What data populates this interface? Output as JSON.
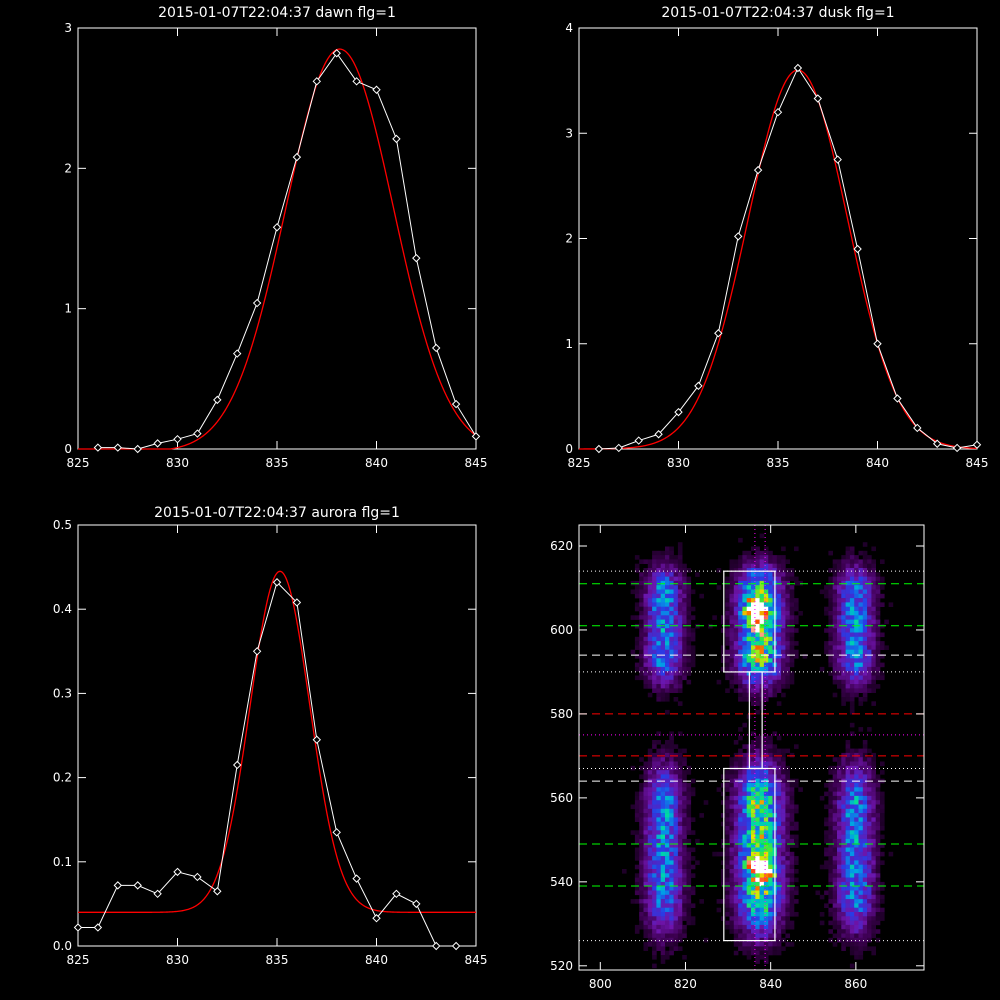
{
  "colors": {
    "background": "#000000",
    "axes": "#ffffff",
    "data_line": "#ffffff",
    "fit_line": "#ff0000",
    "green_dash": "#00ff00",
    "red_dash": "#ff0000",
    "white_dash": "#ffffff",
    "magenta_dot": "#ff00ff"
  },
  "chart_data": [
    {
      "id": "dawn",
      "type": "line",
      "title": "2015-01-07T22:04:37 dawn flg=1",
      "xlim": [
        825,
        845
      ],
      "ylim": [
        0,
        3
      ],
      "xticks": [
        825,
        830,
        835,
        840,
        845
      ],
      "yticks": [
        0,
        1,
        2,
        3
      ],
      "series": [
        {
          "kind": "data",
          "x": [
            826,
            827,
            828,
            829,
            830,
            831,
            832,
            833,
            834,
            835,
            836,
            837,
            838,
            839,
            840,
            841,
            842,
            843,
            844,
            845
          ],
          "y": [
            0.01,
            0.01,
            0.0,
            0.04,
            0.07,
            0.11,
            0.35,
            0.68,
            1.04,
            1.58,
            2.08,
            2.62,
            2.82,
            2.62,
            2.56,
            2.21,
            1.36,
            0.72,
            0.32,
            0.09
          ]
        },
        {
          "kind": "fit",
          "model": "gaussian",
          "amplitude": 2.87,
          "center": 838.15,
          "sigma": 2.7,
          "offset": -0.02
        }
      ]
    },
    {
      "id": "dusk",
      "type": "line",
      "title": "2015-01-07T22:04:37 dusk flg=1",
      "xlim": [
        825,
        845
      ],
      "ylim": [
        0,
        4
      ],
      "xticks": [
        825,
        830,
        835,
        840,
        845
      ],
      "yticks": [
        0,
        1,
        2,
        3,
        4
      ],
      "series": [
        {
          "kind": "data",
          "x": [
            826,
            827,
            828,
            829,
            830,
            831,
            832,
            833,
            834,
            835,
            836,
            837,
            838,
            839,
            840,
            841,
            842,
            843,
            844,
            845
          ],
          "y": [
            0.0,
            0.01,
            0.08,
            0.14,
            0.35,
            0.6,
            1.1,
            2.02,
            2.65,
            3.2,
            3.62,
            3.33,
            2.75,
            1.9,
            1.0,
            0.48,
            0.2,
            0.05,
            0.01,
            0.04
          ]
        },
        {
          "kind": "fit",
          "model": "gaussian",
          "amplitude": 3.6,
          "center": 836.0,
          "sigma": 2.5,
          "offset": 0.0
        }
      ]
    },
    {
      "id": "aurora",
      "type": "line",
      "title": "2015-01-07T22:04:37 aurora flg=1",
      "xlim": [
        825,
        845
      ],
      "ylim": [
        0,
        0.5
      ],
      "xticks": [
        825,
        830,
        835,
        840,
        845
      ],
      "yticks": [
        0.0,
        0.1,
        0.2,
        0.3,
        0.4,
        0.5
      ],
      "yticklabels": [
        "0.0",
        "0.1",
        "0.2",
        "0.3",
        "0.4",
        "0.5"
      ],
      "series": [
        {
          "kind": "data",
          "x": [
            825,
            826,
            827,
            828,
            829,
            830,
            831,
            832,
            833,
            834,
            835,
            836,
            837,
            838,
            839,
            840,
            841,
            842,
            843,
            844
          ],
          "y": [
            0.022,
            0.022,
            0.072,
            0.072,
            0.062,
            0.088,
            0.082,
            0.065,
            0.215,
            0.35,
            0.432,
            0.408,
            0.245,
            0.135,
            0.08,
            0.033,
            0.062,
            0.05,
            0.0,
            0.0
          ]
        },
        {
          "kind": "fit",
          "model": "gaussian",
          "amplitude": 0.405,
          "center": 835.15,
          "sigma": 1.5,
          "offset": 0.04
        }
      ]
    },
    {
      "id": "image",
      "type": "heatmap",
      "title": "",
      "xlim": [
        795,
        876
      ],
      "ylim": [
        519,
        625
      ],
      "xticks": [
        800,
        820,
        840,
        860
      ],
      "yticks": [
        520,
        540,
        560,
        580,
        600,
        620
      ],
      "columns": [
        {
          "x": 815,
          "width": 5
        },
        {
          "x": 837.5,
          "width": 6
        },
        {
          "x": 860,
          "width": 5
        }
      ],
      "bands": [
        {
          "y_from": 589,
          "y_to": 613
        },
        {
          "y_from": 530,
          "y_to": 565
        }
      ],
      "hotspots": [
        {
          "x": 837,
          "y": 605
        },
        {
          "x": 838,
          "y": 602
        },
        {
          "x": 836,
          "y": 604
        },
        {
          "x": 838,
          "y": 542
        },
        {
          "x": 837,
          "y": 544
        },
        {
          "x": 839,
          "y": 543
        }
      ],
      "boxes": [
        {
          "x1": 829,
          "x2": 841,
          "y1": 590,
          "y2": 614
        },
        {
          "x1": 835,
          "x2": 838,
          "y1": 567,
          "y2": 590
        },
        {
          "x1": 829,
          "x2": 841,
          "y1": 526,
          "y2": 567
        }
      ],
      "green_dashed_lines": [
        611,
        601,
        549,
        539
      ],
      "white_dashed_lines": [
        594,
        564
      ],
      "red_dashed_lines": [
        580,
        570
      ],
      "white_dotted_lines": [
        614,
        590,
        567,
        526
      ],
      "magenta_dotted_lines": [
        575
      ],
      "vertical_dotted_lines": [
        836.3,
        838.7
      ]
    }
  ]
}
